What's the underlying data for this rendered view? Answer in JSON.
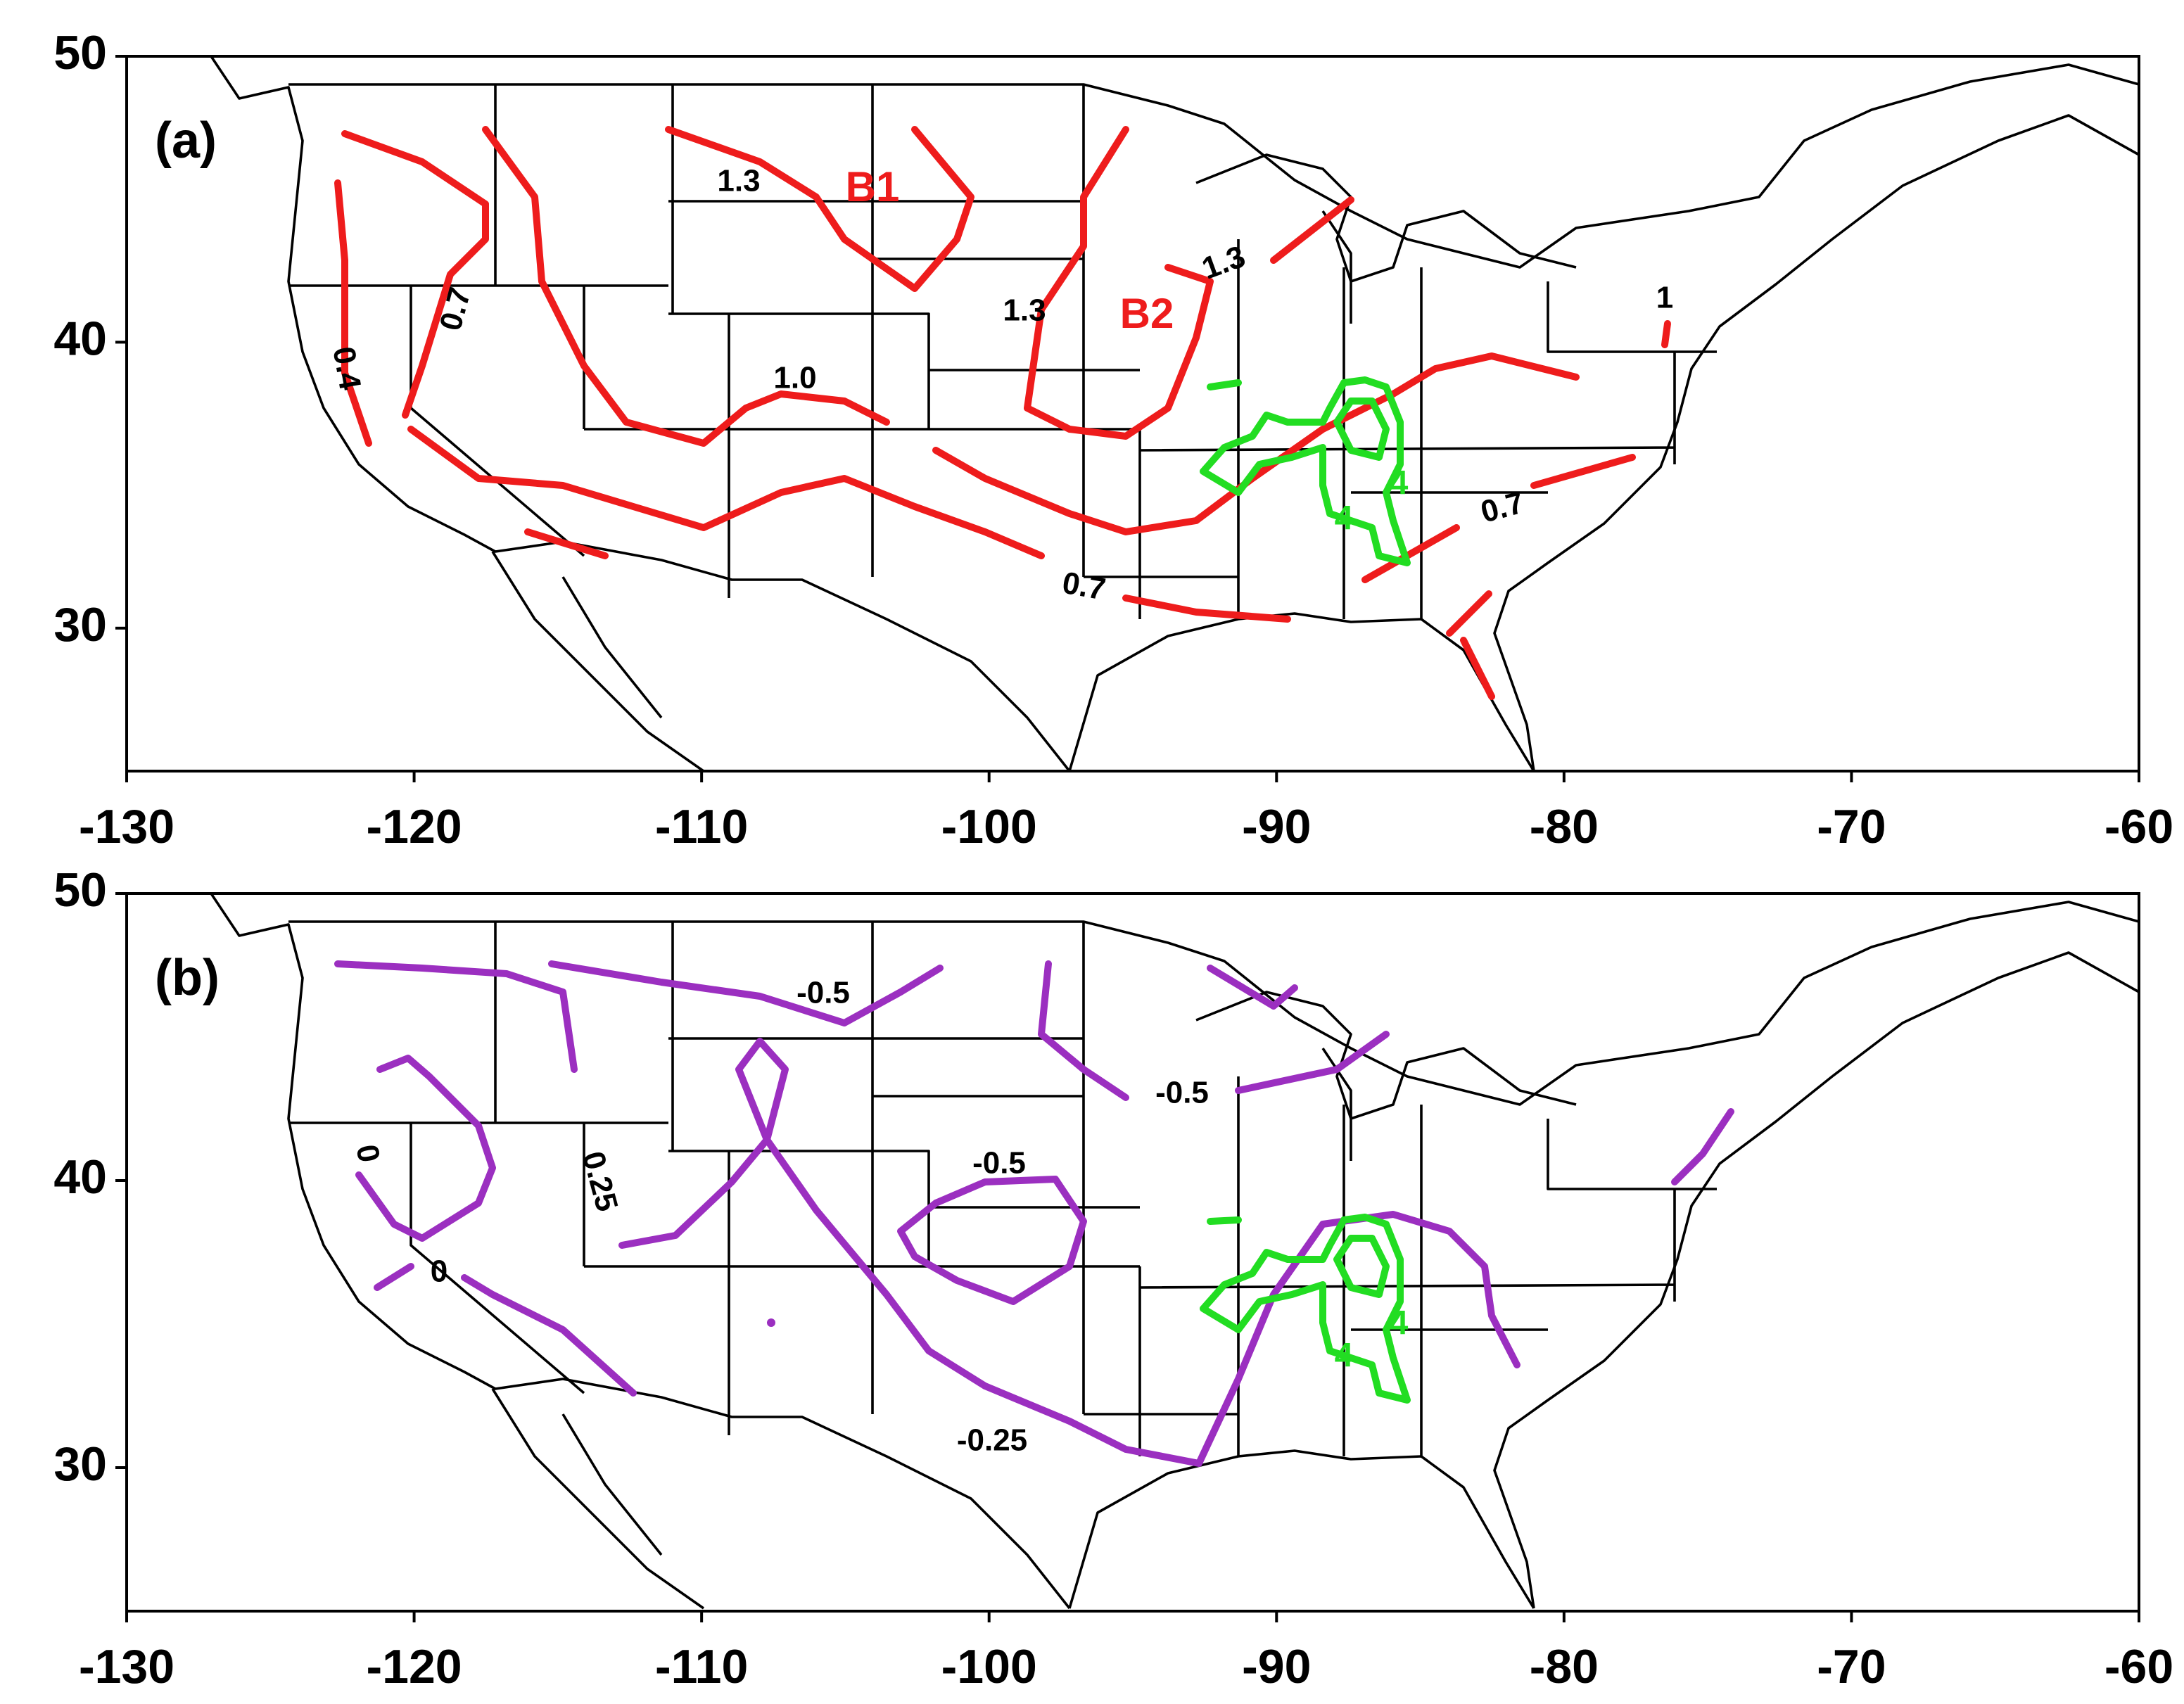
{
  "chart_data": [
    {
      "type": "map",
      "panel_label": "(a)",
      "xlim": [
        -130,
        -60
      ],
      "ylim": [
        25,
        50
      ],
      "xticks": [
        -130,
        -120,
        -110,
        -100,
        -90,
        -80,
        -70,
        -60
      ],
      "yticks": [
        30,
        40,
        50
      ],
      "contour_labels": [
        "1.3",
        "B1",
        "0.7",
        "0.4",
        "1.3",
        "B2",
        "1.3",
        "1.0",
        "0.7",
        "0.7",
        "1",
        "4",
        "4"
      ]
    },
    {
      "type": "map",
      "panel_label": "(b)",
      "xlim": [
        -130,
        -60
      ],
      "ylim": [
        25,
        50
      ],
      "xticks": [
        -130,
        -120,
        -110,
        -100,
        -90,
        -80,
        -70,
        -60
      ],
      "yticks": [
        30,
        40,
        50
      ],
      "contour_labels": [
        "-0.5",
        "-0.5",
        "-0.5",
        "0",
        "0.25",
        "0",
        "-0.25",
        "4",
        "4"
      ]
    }
  ]
}
